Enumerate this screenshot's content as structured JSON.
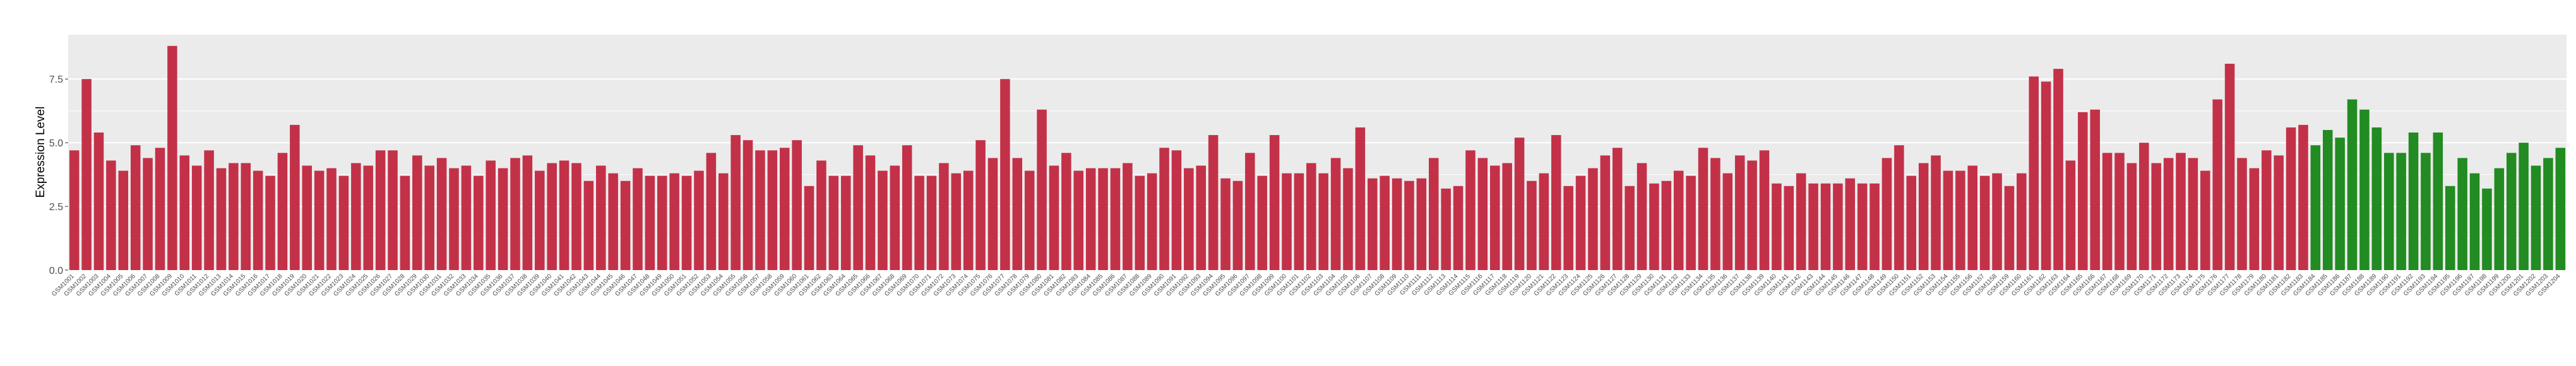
{
  "chart_data": {
    "type": "bar",
    "y_label": "Expression Level",
    "ylim": [
      0,
      9.24
    ],
    "yticks": [
      {
        "value": 0,
        "label": "0.0"
      },
      {
        "value": 2.5,
        "label": "2.5"
      },
      {
        "value": 5,
        "label": "5.0"
      },
      {
        "value": 7.5,
        "label": "7.5"
      }
    ],
    "grid": true,
    "categories": [
      "GSM1001",
      "GSM1002",
      "GSM1003",
      "GSM1004",
      "GSM1005",
      "GSM1006",
      "GSM1007",
      "GSM1008",
      "GSM1009",
      "GSM1010",
      "GSM1011",
      "GSM1012",
      "GSM1013",
      "GSM1014",
      "GSM1015",
      "GSM1016",
      "GSM1017",
      "GSM1018",
      "GSM1019",
      "GSM1020",
      "GSM1021",
      "GSM1022",
      "GSM1023",
      "GSM1024",
      "GSM1025",
      "GSM1026",
      "GSM1027",
      "GSM1028",
      "GSM1029",
      "GSM1030",
      "GSM1031",
      "GSM1032",
      "GSM1033",
      "GSM1034",
      "GSM1035",
      "GSM1036",
      "GSM1037",
      "GSM1038",
      "GSM1039",
      "GSM1040",
      "GSM1041",
      "GSM1042",
      "GSM1043",
      "GSM1044",
      "GSM1045",
      "GSM1046",
      "GSM1047",
      "GSM1048",
      "GSM1049",
      "GSM1050",
      "GSM1051",
      "GSM1052",
      "GSM1053",
      "GSM1054",
      "GSM1055",
      "GSM1056",
      "GSM1057",
      "GSM1058",
      "GSM1059",
      "GSM1060",
      "GSM1061",
      "GSM1062",
      "GSM1063",
      "GSM1064",
      "GSM1065",
      "GSM1066",
      "GSM1067",
      "GSM1068",
      "GSM1069",
      "GSM1070",
      "GSM1071",
      "GSM1072",
      "GSM1073",
      "GSM1074",
      "GSM1075",
      "GSM1076",
      "GSM1077",
      "GSM1078",
      "GSM1079",
      "GSM1080",
      "GSM1081",
      "GSM1082",
      "GSM1083",
      "GSM1084",
      "GSM1085",
      "GSM1086",
      "GSM1087",
      "GSM1088",
      "GSM1089",
      "GSM1090",
      "GSM1091",
      "GSM1092",
      "GSM1093",
      "GSM1094",
      "GSM1095",
      "GSM1096",
      "GSM1097",
      "GSM1098",
      "GSM1099",
      "GSM1100",
      "GSM1101",
      "GSM1102",
      "GSM1103",
      "GSM1104",
      "GSM1105",
      "GSM1106",
      "GSM1107",
      "GSM1108",
      "GSM1109",
      "GSM1110",
      "GSM1111",
      "GSM1112",
      "GSM1113",
      "GSM1114",
      "GSM1115",
      "GSM1116",
      "GSM1117",
      "GSM1118",
      "GSM1119",
      "GSM1120",
      "GSM1121",
      "GSM1122",
      "GSM1123",
      "GSM1124",
      "GSM1125",
      "GSM1126",
      "GSM1127",
      "GSM1128",
      "GSM1129",
      "GSM1130",
      "GSM1131",
      "GSM1132",
      "GSM1133",
      "GSM1134",
      "GSM1135",
      "GSM1136",
      "GSM1137",
      "GSM1138",
      "GSM1139",
      "GSM1140",
      "GSM1141",
      "GSM1142",
      "GSM1143",
      "GSM1144",
      "GSM1145",
      "GSM1146",
      "GSM1147",
      "GSM1148",
      "GSM1149",
      "GSM1150",
      "GSM1151",
      "GSM1152",
      "GSM1153",
      "GSM1154",
      "GSM1155",
      "GSM1156",
      "GSM1157",
      "GSM1158",
      "GSM1159",
      "GSM1160",
      "GSM1161",
      "GSM1162",
      "GSM1163",
      "GSM1164",
      "GSM1165",
      "GSM1166",
      "GSM1167",
      "GSM1168",
      "GSM1169",
      "GSM1170",
      "GSM1171",
      "GSM1172",
      "GSM1173",
      "GSM1174",
      "GSM1175",
      "GSM1176",
      "GSM1177",
      "GSM1178",
      "GSM1179",
      "GSM1180",
      "GSM1181",
      "GSM1182",
      "GSM1183",
      "GSM1184",
      "GSM1185",
      "GSM1186",
      "GSM1187",
      "GSM1188",
      "GSM1189",
      "GSM1190",
      "GSM1191",
      "GSM1192",
      "GSM1193",
      "GSM1194",
      "GSM1195",
      "GSM1196",
      "GSM1197",
      "GSM1198",
      "GSM1199",
      "GSM1200",
      "GSM1201",
      "GSM1202",
      "GSM1203",
      "GSM1204"
    ],
    "series": [
      {
        "color": "#c33148",
        "values": [
          4.7,
          7.5,
          5.4,
          4.3,
          3.9,
          4.9,
          4.4,
          4.8,
          8.8,
          4.5,
          4.1,
          4.7,
          4.0,
          4.2,
          4.2,
          3.9,
          3.7,
          4.6,
          5.7,
          4.1,
          3.9,
          4.0,
          3.7,
          4.2,
          4.1,
          4.7,
          4.7,
          3.7,
          4.5,
          4.1,
          4.4,
          4.0,
          4.1,
          3.7,
          4.3,
          4.0,
          4.4,
          4.5,
          3.9,
          4.2,
          4.3,
          4.2,
          3.5,
          4.1,
          3.8,
          3.5,
          4.0,
          3.7,
          3.7,
          3.8,
          3.7,
          3.9,
          4.6,
          3.8,
          5.3,
          5.1,
          4.7,
          4.7,
          4.8,
          5.1,
          3.3,
          4.3,
          3.7,
          3.7,
          4.9,
          4.5,
          3.9,
          4.1,
          4.9,
          3.7,
          3.7,
          4.2,
          3.8,
          3.9,
          5.1,
          4.4,
          7.5,
          4.4,
          3.9,
          6.3,
          4.1,
          4.6,
          3.9,
          4.0,
          4.0,
          4.0,
          4.2,
          3.7,
          3.8,
          4.8,
          4.7,
          4.0,
          4.1,
          5.3,
          3.6,
          3.5,
          4.6,
          3.7,
          5.3,
          3.8,
          3.8,
          4.2,
          3.8,
          4.4,
          4.0,
          5.6,
          3.6,
          3.7,
          3.6,
          3.5,
          3.6,
          4.4,
          3.2,
          3.3,
          4.7,
          4.4,
          4.1,
          4.2,
          5.2,
          3.5,
          3.8,
          5.3,
          3.3,
          3.7,
          4.0,
          4.5,
          4.8,
          3.3,
          4.2,
          3.4,
          3.5,
          3.9,
          3.7,
          4.8,
          4.4,
          3.8,
          4.5,
          4.3,
          4.7,
          3.4,
          3.3,
          3.8,
          3.4,
          3.4,
          3.4,
          3.6,
          3.4,
          3.4,
          4.4,
          4.9,
          3.7,
          4.2,
          4.5,
          3.9,
          3.9,
          4.1,
          3.7,
          3.8,
          3.3,
          3.8,
          7.6,
          7.4,
          7.9,
          4.3,
          6.2,
          6.3,
          4.6,
          4.6,
          4.2,
          5.0,
          4.2,
          4.4,
          4.6,
          4.4,
          3.9,
          6.7,
          8.1,
          4.4,
          4.0,
          4.7,
          4.5,
          5.6,
          5.7,
          null,
          null,
          null,
          null,
          null,
          null,
          null,
          null,
          null,
          null,
          null,
          null,
          null,
          null,
          null,
          null,
          null,
          null,
          null,
          null,
          null
        ]
      },
      {
        "color": "#228b22",
        "values": [
          null,
          null,
          null,
          null,
          null,
          null,
          null,
          null,
          null,
          null,
          null,
          null,
          null,
          null,
          null,
          null,
          null,
          null,
          null,
          null,
          null,
          null,
          null,
          null,
          null,
          null,
          null,
          null,
          null,
          null,
          null,
          null,
          null,
          null,
          null,
          null,
          null,
          null,
          null,
          null,
          null,
          null,
          null,
          null,
          null,
          null,
          null,
          null,
          null,
          null,
          null,
          null,
          null,
          null,
          null,
          null,
          null,
          null,
          null,
          null,
          null,
          null,
          null,
          null,
          null,
          null,
          null,
          null,
          null,
          null,
          null,
          null,
          null,
          null,
          null,
          null,
          null,
          null,
          null,
          null,
          null,
          null,
          null,
          null,
          null,
          null,
          null,
          null,
          null,
          null,
          null,
          null,
          null,
          null,
          null,
          null,
          null,
          null,
          null,
          null,
          null,
          null,
          null,
          null,
          null,
          null,
          null,
          null,
          null,
          null,
          null,
          null,
          null,
          null,
          null,
          null,
          null,
          null,
          null,
          null,
          null,
          null,
          null,
          null,
          null,
          null,
          null,
          null,
          null,
          null,
          null,
          null,
          null,
          null,
          null,
          null,
          null,
          null,
          null,
          null,
          null,
          null,
          null,
          null,
          null,
          null,
          null,
          null,
          null,
          null,
          null,
          null,
          null,
          null,
          null,
          null,
          null,
          null,
          null,
          null,
          null,
          null,
          null,
          null,
          null,
          null,
          null,
          null,
          null,
          null,
          null,
          null,
          null,
          null,
          null,
          null,
          null,
          null,
          null,
          null,
          null,
          null,
          null,
          4.9,
          5.5,
          5.2,
          6.7,
          6.3,
          5.6,
          4.6,
          4.6,
          5.4,
          4.6,
          5.4,
          3.3,
          4.4,
          3.8,
          3.2,
          4.0,
          4.6,
          5.0,
          4.1,
          4.4,
          4.8
        ]
      }
    ]
  }
}
